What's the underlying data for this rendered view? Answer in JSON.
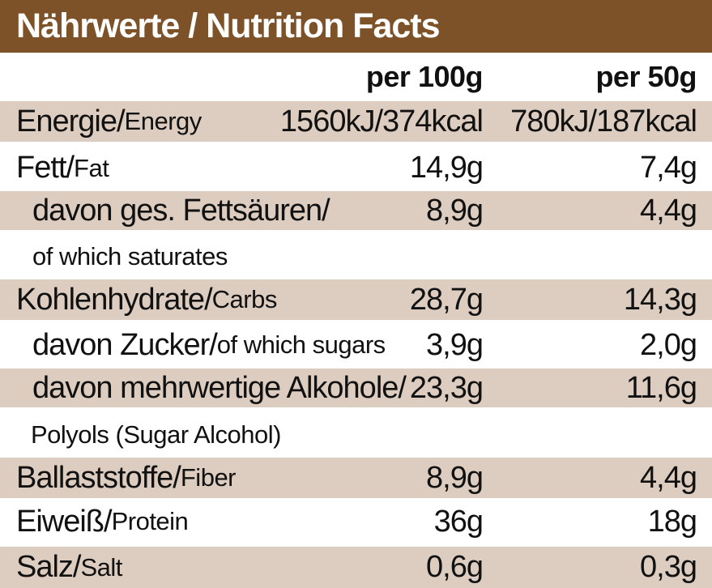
{
  "title": "Nährwerte / Nutrition Facts",
  "columns": {
    "per100": "per 100g",
    "per50": "per 50g"
  },
  "rows": [
    {
      "de": "Energie/",
      "en": "Energy",
      "per100": "1560kJ/374kcal",
      "per50": "780kJ/187kcal"
    },
    {
      "de": "Fett/",
      "en": "Fat",
      "per100": "14,9g",
      "per50": "7,4g"
    },
    {
      "de": "davon ges. Fettsäuren/",
      "en": "",
      "per100": "8,9g",
      "per50": "4,4g"
    },
    {
      "de": "of which saturates"
    },
    {
      "de": "Kohlenhydrate/",
      "en": "Carbs",
      "per100": "28,7g",
      "per50": "14,3g"
    },
    {
      "de": "davon Zucker/",
      "en": "of which sugars",
      "per100": "3,9g",
      "per50": "2,0g"
    },
    {
      "de": "davon mehrwertige Alkohole/",
      "en": "",
      "per100": "23,3g",
      "per50": "11,6g"
    },
    {
      "de": "Polyols (Sugar Alcohol)"
    },
    {
      "de": "Ballaststoffe/",
      "en": "Fiber",
      "per100": "8,9g",
      "per50": "4,4g"
    },
    {
      "de": "Eiweiß/",
      "en": "Protein",
      "per100": "36g",
      "per50": "18g"
    },
    {
      "de": "Salz/",
      "en": "Salt",
      "per100": "0,6g",
      "per50": "0,3g"
    }
  ],
  "colors": {
    "header": "#7e5229",
    "header_text": "#ffffff",
    "shade": "#ddcdc0"
  }
}
